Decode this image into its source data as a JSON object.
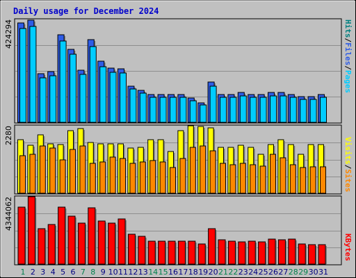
{
  "title": "Daily usage for December 2024",
  "colors": {
    "background": "#c0c0c0",
    "grid": "#8e8e8e",
    "pages": "#00ccff",
    "files": "#2e5ce6",
    "hits": "#008080",
    "visits": "#ffff00",
    "sites": "#ff8800",
    "kbytes": "#ff0000",
    "weekend_label": "#00804d",
    "weekday_label": "#000080"
  },
  "legends": {
    "top": [
      "Pages",
      "/",
      "Files",
      "/",
      "Hits"
    ],
    "middle": [
      "Sites",
      "/",
      "Visits"
    ],
    "bottom": [
      "KBytes"
    ]
  },
  "chart_data": [
    {
      "type": "bar",
      "name": "hits-files-pages",
      "ymax_label": "424294",
      "ylim": [
        0,
        424294
      ],
      "categories": [
        "1",
        "2",
        "3",
        "4",
        "5",
        "6",
        "7",
        "8",
        "9",
        "10",
        "11",
        "12",
        "13",
        "14",
        "15",
        "16",
        "17",
        "18",
        "19",
        "20",
        "21",
        "22",
        "23",
        "24",
        "25",
        "26",
        "27",
        "28",
        "29",
        "30",
        "31"
      ],
      "weekend_days": [
        "1",
        "7",
        "8",
        "14",
        "15",
        "21",
        "22",
        "28",
        "29"
      ],
      "series": [
        {
          "name": "Files",
          "values": [
            410000,
            421000,
            200000,
            210000,
            362000,
            302000,
            216000,
            341000,
            251000,
            224000,
            221000,
            150000,
            132000,
            116000,
            116000,
            116000,
            116000,
            99000,
            81000,
            166000,
            116000,
            116000,
            124000,
            116000,
            116000,
            124000,
            124000,
            114000,
            106000,
            106000,
            116000
          ]
        },
        {
          "name": "Pages",
          "values": [
            388000,
            397000,
            184000,
            191000,
            334000,
            282000,
            199000,
            313000,
            230000,
            205000,
            203000,
            139000,
            120000,
            104000,
            104000,
            104000,
            104000,
            89000,
            72000,
            149000,
            103000,
            103000,
            110000,
            103000,
            103000,
            110000,
            110000,
            102000,
            96000,
            96000,
            104000
          ]
        }
      ]
    },
    {
      "type": "bar",
      "name": "visits-sites",
      "ymax_label": "2280",
      "ylim": [
        0,
        2280
      ],
      "categories": [
        "1",
        "2",
        "3",
        "4",
        "5",
        "6",
        "7",
        "8",
        "9",
        "10",
        "11",
        "12",
        "13",
        "14",
        "15",
        "16",
        "17",
        "18",
        "19",
        "20",
        "21",
        "22",
        "23",
        "24",
        "25",
        "26",
        "27",
        "28",
        "29",
        "30",
        "31"
      ],
      "series": [
        {
          "name": "Visits",
          "values": [
            1820,
            1630,
            1970,
            1660,
            1640,
            2120,
            2190,
            1720,
            1680,
            1660,
            1660,
            1520,
            1560,
            1800,
            1800,
            1400,
            2120,
            2280,
            2260,
            2200,
            1540,
            1540,
            1620,
            1540,
            1310,
            1650,
            1800,
            1650,
            1310,
            1640,
            1640
          ]
        },
        {
          "name": "Sites",
          "values": [
            1260,
            1310,
            1600,
            1530,
            1130,
            1480,
            1610,
            1010,
            1060,
            1220,
            1170,
            1010,
            1060,
            1110,
            1060,
            870,
            1170,
            1550,
            1610,
            1430,
            1010,
            960,
            1010,
            960,
            910,
            1320,
            1210,
            960,
            860,
            900,
            900
          ]
        }
      ]
    },
    {
      "type": "bar",
      "name": "kbytes",
      "ymax_label": "4344062",
      "ylim": [
        0,
        4344062
      ],
      "categories": [
        "1",
        "2",
        "3",
        "4",
        "5",
        "6",
        "7",
        "8",
        "9",
        "10",
        "11",
        "12",
        "13",
        "14",
        "15",
        "16",
        "17",
        "18",
        "19",
        "20",
        "21",
        "22",
        "23",
        "24",
        "25",
        "26",
        "27",
        "28",
        "29",
        "30",
        "31"
      ],
      "series": [
        {
          "name": "KBytes",
          "values": [
            3660000,
            4344062,
            2280000,
            2560000,
            3660000,
            3110000,
            2620000,
            3620000,
            2790000,
            2640000,
            2920000,
            1930000,
            1770000,
            1470000,
            1470000,
            1460000,
            1480000,
            1460000,
            1300000,
            2290000,
            1570000,
            1460000,
            1440000,
            1460000,
            1420000,
            1600000,
            1580000,
            1600000,
            1290000,
            1260000,
            1270000
          ]
        }
      ]
    }
  ]
}
